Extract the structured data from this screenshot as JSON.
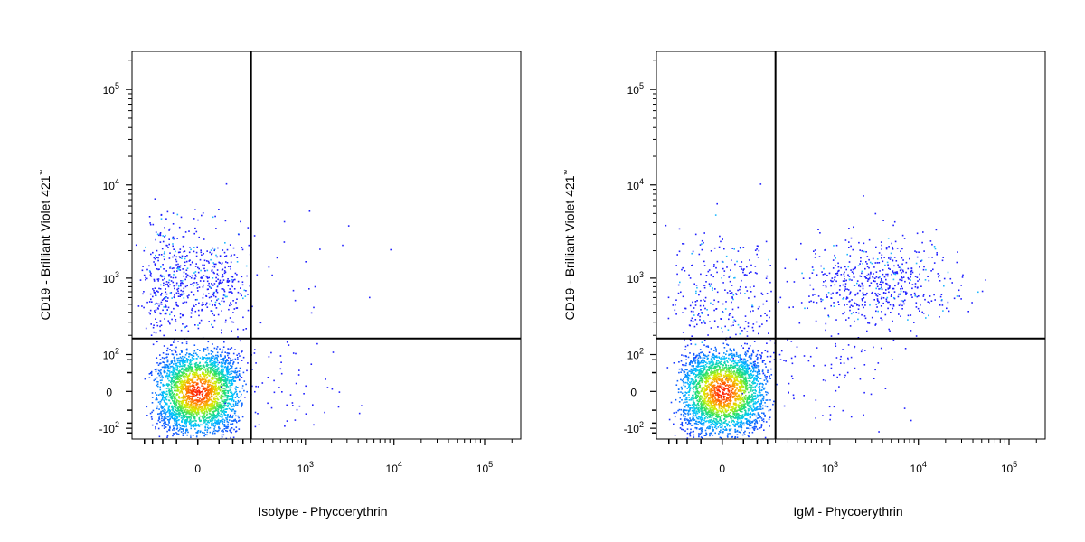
{
  "chart_data": [
    {
      "type": "scatter",
      "subtype": "flow-cytometry-density-dot-plot",
      "xlabel": "Isotype - Phycoerythrin",
      "ylabel": "CD19 - Brilliant Violet 421",
      "ylabel_mark": "™",
      "x_scale": "biexponential",
      "y_scale": "biexponential",
      "x_ticks": [
        {
          "value": 0,
          "base": "0",
          "exp": ""
        },
        {
          "value": 1000,
          "base": "10",
          "exp": "3"
        },
        {
          "value": 10000,
          "base": "10",
          "exp": "4"
        },
        {
          "value": 100000,
          "base": "10",
          "exp": "5"
        }
      ],
      "y_ticks": [
        {
          "value": -100,
          "base": "-10",
          "exp": "2"
        },
        {
          "value": 0,
          "base": "0",
          "exp": ""
        },
        {
          "value": 100,
          "base": "10",
          "exp": "2"
        },
        {
          "value": 1000,
          "base": "10",
          "exp": "3"
        },
        {
          "value": 10000,
          "base": "10",
          "exp": "4"
        },
        {
          "value": 100000,
          "base": "10",
          "exp": "5"
        }
      ],
      "xlim": [
        -300,
        250000
      ],
      "ylim": [
        -150,
        250000
      ],
      "quadrant_gate": {
        "x": 200,
        "y": 180
      },
      "populations": [
        {
          "name": "",
          "x_center": 0,
          "y_center": 0,
          "x_spread": 60,
          "y_spread": 55,
          "count": 2600,
          "density": "high"
        },
        {
          "name": "",
          "x_center": -20,
          "y_center": 900,
          "x_spread": 90,
          "y_spread": 0.32,
          "count": 650,
          "density": "medium"
        },
        {
          "name": "",
          "x_center": 400,
          "y_center": 30,
          "x_spread": 0.5,
          "y_spread": 60,
          "count": 70,
          "density": "sparse"
        },
        {
          "name": "",
          "x_center": 700,
          "y_center": 800,
          "x_spread": 0.6,
          "y_spread": 0.4,
          "count": 25,
          "density": "sparse"
        }
      ],
      "grid": false
    },
    {
      "type": "scatter",
      "subtype": "flow-cytometry-density-dot-plot",
      "xlabel": "IgM - Phycoerythrin",
      "ylabel": "CD19 - Brilliant Violet 421",
      "ylabel_mark": "™",
      "x_scale": "biexponential",
      "y_scale": "biexponential",
      "x_ticks": [
        {
          "value": 0,
          "base": "0",
          "exp": ""
        },
        {
          "value": 1000,
          "base": "10",
          "exp": "3"
        },
        {
          "value": 10000,
          "base": "10",
          "exp": "4"
        },
        {
          "value": 100000,
          "base": "10",
          "exp": "5"
        }
      ],
      "y_ticks": [
        {
          "value": -100,
          "base": "-10",
          "exp": "2"
        },
        {
          "value": 0,
          "base": "0",
          "exp": ""
        },
        {
          "value": 100,
          "base": "10",
          "exp": "2"
        },
        {
          "value": 1000,
          "base": "10",
          "exp": "3"
        },
        {
          "value": 10000,
          "base": "10",
          "exp": "4"
        },
        {
          "value": 100000,
          "base": "10",
          "exp": "5"
        }
      ],
      "xlim": [
        -300,
        250000
      ],
      "ylim": [
        -150,
        250000
      ],
      "quadrant_gate": {
        "x": 200,
        "y": 180
      },
      "populations": [
        {
          "name": "",
          "x_center": 0,
          "y_center": 0,
          "x_spread": 60,
          "y_spread": 55,
          "count": 2600,
          "density": "high"
        },
        {
          "name": "",
          "x_center": 0,
          "y_center": 600,
          "x_spread": 80,
          "y_spread": 0.35,
          "count": 300,
          "density": "medium"
        },
        {
          "name": "",
          "x_center": 3000,
          "y_center": 900,
          "x_spread": 0.45,
          "y_spread": 0.25,
          "count": 600,
          "density": "medium"
        },
        {
          "name": "",
          "x_center": 900,
          "y_center": 60,
          "x_spread": 0.5,
          "y_spread": 70,
          "count": 90,
          "density": "sparse"
        }
      ],
      "grid": false
    }
  ]
}
